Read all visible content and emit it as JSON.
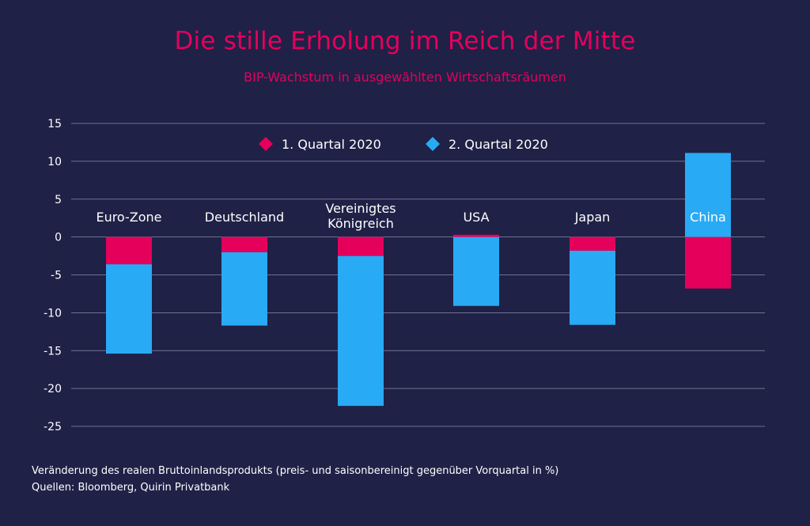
{
  "chart_data": {
    "type": "bar",
    "title": "Die stille Erholung im Reich der Mitte",
    "subtitle": "BIP-Wachstum in ausgewählten Wirtschaftsräumen",
    "categories": [
      [
        "Euro-Zone"
      ],
      [
        "Deutschland"
      ],
      [
        "Vereinigtes",
        "Königreich"
      ],
      [
        "USA"
      ],
      [
        "Japan"
      ],
      [
        "China"
      ]
    ],
    "series": [
      {
        "name": "1. Quartal 2020",
        "color": "#e5005b",
        "values": [
          -3.6,
          -2.0,
          -2.5,
          0.3,
          -1.8,
          -6.8
        ]
      },
      {
        "name": "2. Quartal 2020",
        "color": "#29aaf4",
        "values": [
          -11.8,
          -9.7,
          -19.8,
          -9.1,
          -9.8,
          11.1
        ]
      }
    ],
    "ylim": [
      -25,
      15
    ],
    "yticks": [
      15,
      10,
      5,
      0,
      -5,
      -10,
      -15,
      -20,
      -25
    ],
    "grid": true,
    "legend_position": "top-center",
    "footnotes": [
      "Veränderung des realen Bruttoinlandsprodukts (preis- und saisonbereinigt gegenüber Vorquartal in %)",
      "Quellen: Bloomberg, Quirin Privatbank"
    ]
  }
}
